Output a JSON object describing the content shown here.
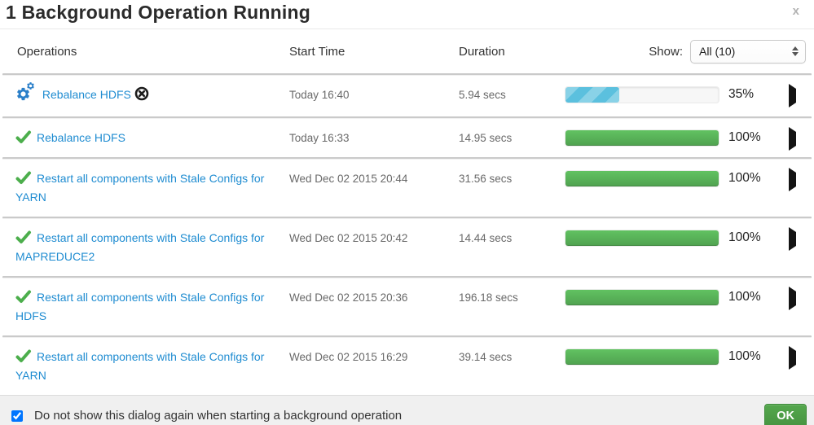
{
  "dialog": {
    "title": "1 Background Operation Running",
    "close_glyph": "x"
  },
  "table": {
    "headers": {
      "operations": "Operations",
      "start_time": "Start Time",
      "duration": "Duration"
    },
    "show_label": "Show:",
    "show_value": "All (10)"
  },
  "rows": [
    {
      "name": "Rebalance HDFS",
      "start": "Today 16:40",
      "duration": "5.94 secs",
      "percent": 35,
      "percent_label": "35%",
      "status": "running",
      "abortable": true
    },
    {
      "name": "Rebalance HDFS",
      "start": "Today 16:33",
      "duration": "14.95 secs",
      "percent": 100,
      "percent_label": "100%",
      "status": "success",
      "abortable": false
    },
    {
      "name": "Restart all components with Stale Configs for YARN",
      "start": "Wed Dec 02 2015 20:44",
      "duration": "31.56 secs",
      "percent": 100,
      "percent_label": "100%",
      "status": "success",
      "abortable": false
    },
    {
      "name": "Restart all components with Stale Configs for MAPREDUCE2",
      "start": "Wed Dec 02 2015 20:42",
      "duration": "14.44 secs",
      "percent": 100,
      "percent_label": "100%",
      "status": "success",
      "abortable": false
    },
    {
      "name": "Restart all components with Stale Configs for HDFS",
      "start": "Wed Dec 02 2015 20:36",
      "duration": "196.18 secs",
      "percent": 100,
      "percent_label": "100%",
      "status": "success",
      "abortable": false
    },
    {
      "name": "Restart all components with Stale Configs for YARN",
      "start": "Wed Dec 02 2015 16:29",
      "duration": "39.14 secs",
      "percent": 100,
      "percent_label": "100%",
      "status": "success",
      "abortable": false
    }
  ],
  "footer": {
    "checkbox_label": "Do not show this dialog again when starting a background operation",
    "checkbox_checked": true,
    "ok_label": "OK"
  },
  "colors": {
    "link_blue": "#1f8cd1",
    "check_green": "#4cae4c",
    "bar_blue": "#5bc0de",
    "bar_green": "#5cb85c",
    "ok_button_green": "#4c9e45",
    "footer_bg": "#f0f0f0"
  }
}
